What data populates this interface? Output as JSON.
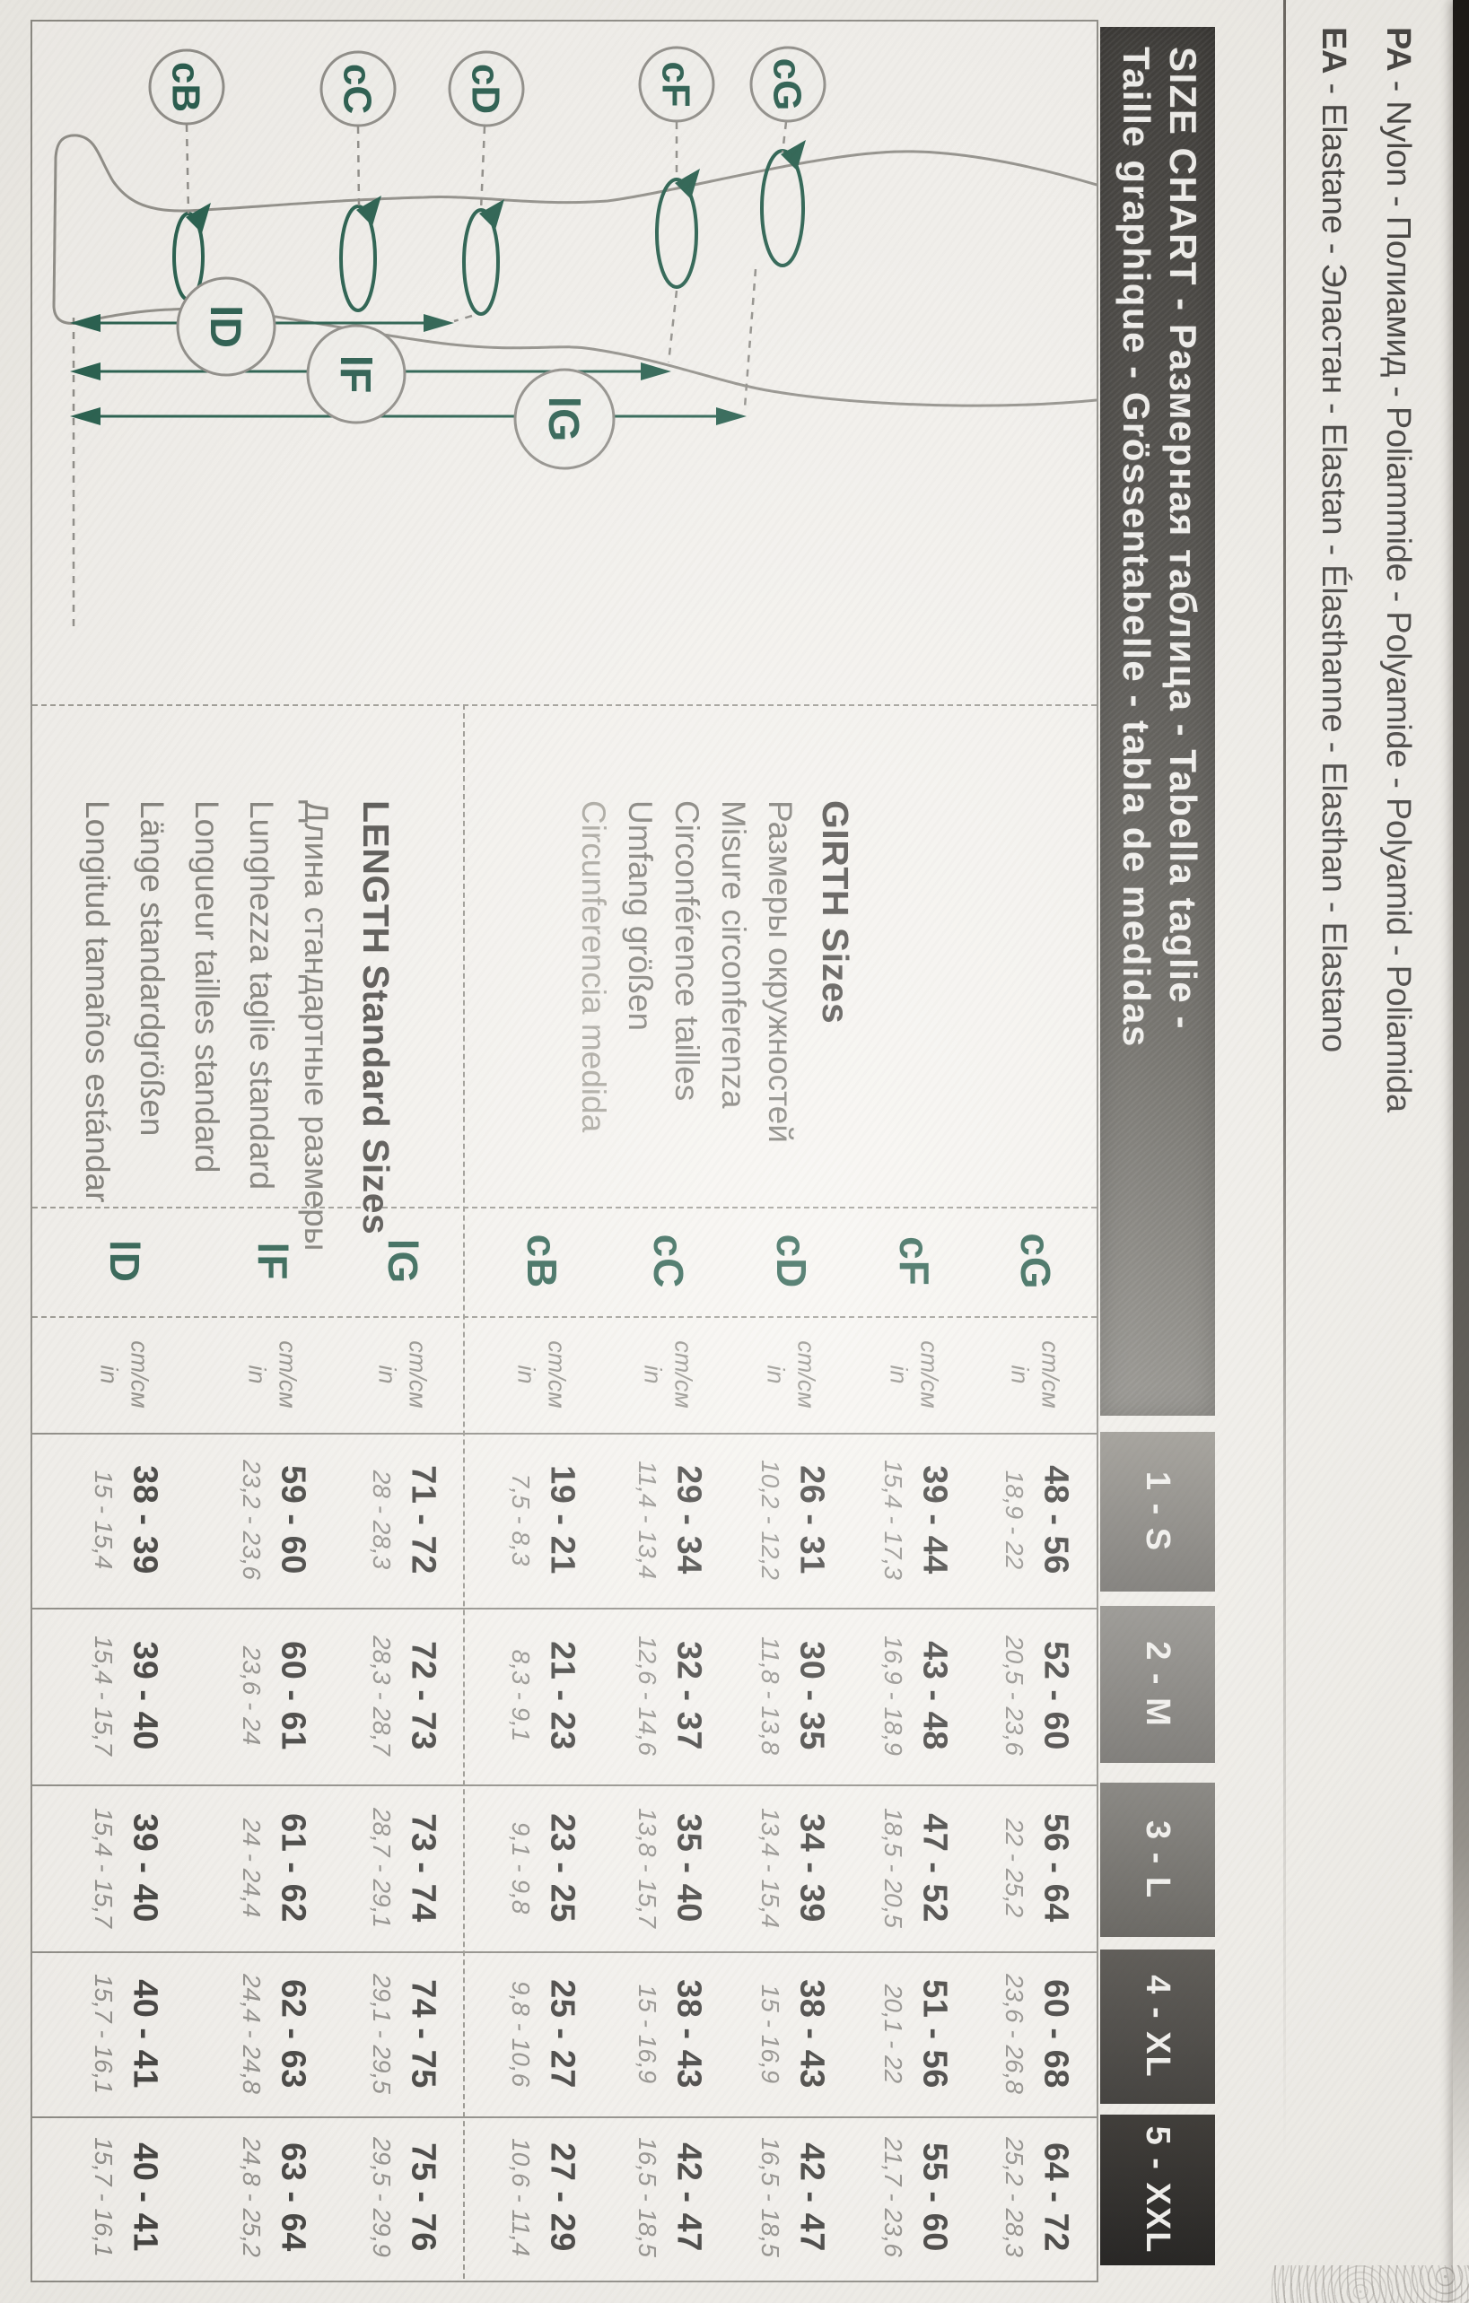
{
  "colors": {
    "accent_green": "#265C4B",
    "bar_dark": "#3A3834"
  },
  "materials": {
    "pa_code": "PA",
    "pa_rest": " - Nylon - Полиамид - Poliammide - Polyamide - Polyamid - Poliamida",
    "ea_code": "EA",
    "ea_rest": " - Elastane - Эластан - Elastan - Élasthanne - Elasthan - Elastano"
  },
  "header": {
    "line1": "SIZE CHART - Размерная таблица - Tabella taglie -",
    "line2": "Taille graphique - Grössentabelle - tabla de medidas"
  },
  "diagram": {
    "labels": {
      "cb": "cB",
      "cc": "cC",
      "cd": "cD",
      "cf": "cF",
      "cg": "cG",
      "ld": "lD",
      "lf": "lF",
      "lg": "lG"
    }
  },
  "girth_cell": {
    "title": "GIRTH Sizes",
    "lines": [
      "Размеры окружностей",
      "Misure circonferenza",
      "Circonférence tailles",
      "Umfang größen",
      "Circunferencia medida"
    ]
  },
  "length_cell": {
    "title": "LENGTH Standard Sizes",
    "lines": [
      "Длина стандартные размеры",
      "Lunghezza taglie standard",
      "Longueur tailles standard",
      "Länge standardgrößen",
      "Longitud tamaños estándar"
    ]
  },
  "table": {
    "sizes": [
      "1 - S",
      "2 - M",
      "3 - L",
      "4 - XL",
      "5 - XXL"
    ],
    "unit_cm": "cm/cм",
    "unit_in": "in",
    "rows": [
      {
        "label": "cG",
        "values": [
          {
            "cm": "48 - 56",
            "in": "18,9 - 22"
          },
          {
            "cm": "52 - 60",
            "in": "20,5 - 23,6"
          },
          {
            "cm": "56 - 64",
            "in": "22 - 25,2"
          },
          {
            "cm": "60 - 68",
            "in": "23,6 - 26,8"
          },
          {
            "cm": "64 - 72",
            "in": "25,2 - 28,3"
          }
        ]
      },
      {
        "label": "cF",
        "values": [
          {
            "cm": "39 - 44",
            "in": "15,4 - 17,3"
          },
          {
            "cm": "43 - 48",
            "in": "16,9 - 18,9"
          },
          {
            "cm": "47 - 52",
            "in": "18,5 - 20,5"
          },
          {
            "cm": "51 - 56",
            "in": "20,1 - 22"
          },
          {
            "cm": "55 - 60",
            "in": "21,7 - 23,6"
          }
        ]
      },
      {
        "label": "cD",
        "values": [
          {
            "cm": "26 - 31",
            "in": "10,2 - 12,2"
          },
          {
            "cm": "30 - 35",
            "in": "11,8 - 13,8"
          },
          {
            "cm": "34 - 39",
            "in": "13,4 - 15,4"
          },
          {
            "cm": "38 - 43",
            "in": "15 - 16,9"
          },
          {
            "cm": "42 - 47",
            "in": "16,5 - 18,5"
          }
        ]
      },
      {
        "label": "cC",
        "values": [
          {
            "cm": "29 - 34",
            "in": "11,4 - 13,4"
          },
          {
            "cm": "32 - 37",
            "in": "12,6 - 14,6"
          },
          {
            "cm": "35 - 40",
            "in": "13,8 - 15,7"
          },
          {
            "cm": "38 - 43",
            "in": "15 - 16,9"
          },
          {
            "cm": "42 - 47",
            "in": "16,5 - 18,5"
          }
        ]
      },
      {
        "label": "cB",
        "values": [
          {
            "cm": "19 - 21",
            "in": "7,5 - 8,3"
          },
          {
            "cm": "21 - 23",
            "in": "8,3 - 9,1"
          },
          {
            "cm": "23 - 25",
            "in": "9,1 - 9,8"
          },
          {
            "cm": "25 - 27",
            "in": "9,8 - 10,6"
          },
          {
            "cm": "27 - 29",
            "in": "10,6 - 11,4"
          }
        ]
      },
      {
        "label": "lG",
        "values": [
          {
            "cm": "71 - 72",
            "in": "28 - 28,3"
          },
          {
            "cm": "72 - 73",
            "in": "28,3 - 28,7"
          },
          {
            "cm": "73 - 74",
            "in": "28,7 - 29,1"
          },
          {
            "cm": "74 - 75",
            "in": "29,1 - 29,5"
          },
          {
            "cm": "75 - 76",
            "in": "29,5 - 29,9"
          }
        ]
      },
      {
        "label": "lF",
        "values": [
          {
            "cm": "59 - 60",
            "in": "23,2 - 23,6"
          },
          {
            "cm": "60 - 61",
            "in": "23,6 - 24"
          },
          {
            "cm": "61 - 62",
            "in": "24 - 24,4"
          },
          {
            "cm": "62 - 63",
            "in": "24,4 - 24,8"
          },
          {
            "cm": "63 - 64",
            "in": "24,8 - 25,2"
          }
        ]
      },
      {
        "label": "lD",
        "values": [
          {
            "cm": "38 - 39",
            "in": "15 - 15,4"
          },
          {
            "cm": "39 - 40",
            "in": "15,4 - 15,7"
          },
          {
            "cm": "39 - 40",
            "in": "15,4 - 15,7"
          },
          {
            "cm": "40 - 41",
            "in": "15,7 - 16,1"
          },
          {
            "cm": "40 - 41",
            "in": "15,7 - 16,1"
          }
        ]
      }
    ]
  }
}
